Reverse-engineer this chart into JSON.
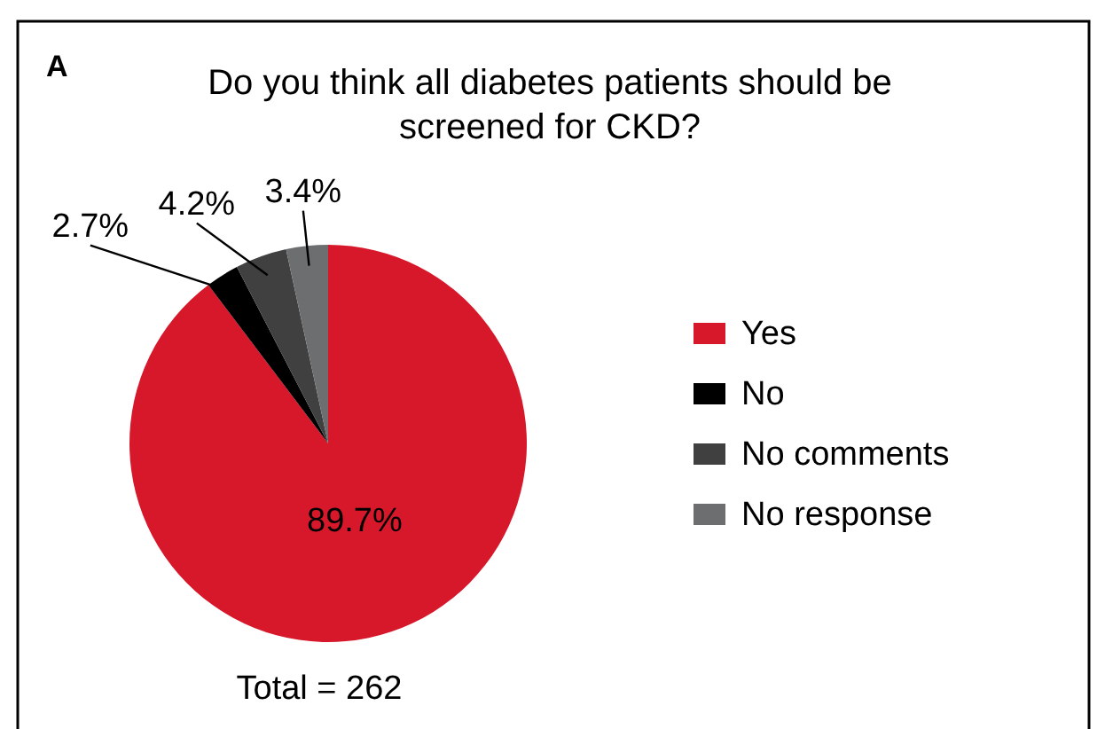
{
  "chart_data": {
    "type": "pie",
    "title": "Do you think all diabetes patients should be screened for CKD?",
    "categories": [
      "Yes",
      "No",
      "No comments",
      "No response"
    ],
    "values": [
      89.7,
      2.7,
      4.2,
      3.4
    ],
    "colors": [
      "#d7182a",
      "#000000",
      "#404040",
      "#6d6e70"
    ],
    "value_labels": [
      "89.7%",
      "2.7%",
      "4.2%",
      "3.4%"
    ],
    "legend": "right",
    "annotations": [
      "A",
      "Total = 262"
    ]
  }
}
